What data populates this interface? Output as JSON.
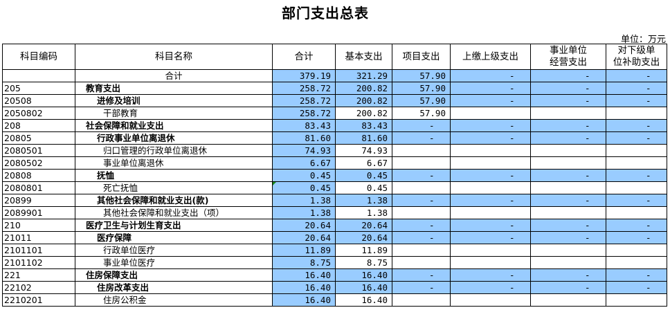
{
  "title": "部门支出总表",
  "unit": "单位：万元",
  "colors": {
    "highlight": "#99ccff",
    "marker": "#1a8a1a"
  },
  "headers": [
    "科目编码",
    "科目名称",
    "合计",
    "基本支出",
    "项目支出",
    "上缴上级支出",
    "事业单位\n经营支出",
    "对下级单\n位补助支出"
  ],
  "rows": [
    {
      "code": "",
      "name": "合计",
      "level": 0,
      "values": [
        "379.19",
        "321.29",
        "57.90",
        "-",
        "-",
        "-"
      ]
    },
    {
      "code": "205",
      "name": "教育支出",
      "level": 1,
      "values": [
        "258.72",
        "200.82",
        "57.90",
        "-",
        "-",
        "-"
      ]
    },
    {
      "code": "20508",
      "name": "进修及培训",
      "level": 2,
      "values": [
        "258.72",
        "200.82",
        "57.90",
        "-",
        "-",
        "-"
      ]
    },
    {
      "code": "2050802",
      "name": "干部教育",
      "level": 3,
      "values": [
        "258.72",
        "200.82",
        "57.90",
        "",
        "",
        ""
      ]
    },
    {
      "code": "208",
      "name": "社会保障和就业支出",
      "level": 1,
      "values": [
        "83.43",
        "83.43",
        "-",
        "-",
        "-",
        "-"
      ]
    },
    {
      "code": "20805",
      "name": "行政事业单位离退休",
      "level": 2,
      "values": [
        "81.60",
        "81.60",
        "-",
        "-",
        "-",
        "-"
      ]
    },
    {
      "code": "2080501",
      "name": "归口管理的行政单位离退休",
      "level": 3,
      "values": [
        "74.93",
        "74.93",
        "",
        "",
        "",
        ""
      ]
    },
    {
      "code": "2080502",
      "name": "事业单位离退休",
      "level": 3,
      "values": [
        "6.67",
        "6.67",
        "",
        "",
        "",
        ""
      ]
    },
    {
      "code": "20808",
      "name": "抚恤",
      "level": 2,
      "values": [
        "0.45",
        "0.45",
        "-",
        "-",
        "-",
        "-"
      ]
    },
    {
      "code": "2080801",
      "name": "死亡抚恤",
      "level": 3,
      "values": [
        "0.45",
        "0.45",
        "",
        "",
        "",
        ""
      ],
      "marker": true
    },
    {
      "code": "20899",
      "name": "其他社会保障和就业支出(款)",
      "level": 2,
      "values": [
        "1.38",
        "1.38",
        "-",
        "-",
        "-",
        "-"
      ]
    },
    {
      "code": "2089901",
      "name": "其他社会保障和就业支出（项）",
      "level": 3,
      "values": [
        "1.38",
        "1.38",
        "",
        "",
        "",
        ""
      ]
    },
    {
      "code": "210",
      "name": "医疗卫生与计划生育支出",
      "level": 1,
      "values": [
        "20.64",
        "20.64",
        "-",
        "-",
        "-",
        "-"
      ]
    },
    {
      "code": "21011",
      "name": "医疗保障",
      "level": 2,
      "values": [
        "20.64",
        "20.64",
        "-",
        "-",
        "-",
        "-"
      ]
    },
    {
      "code": "2101101",
      "name": "行政单位医疗",
      "level": 3,
      "values": [
        "11.89",
        "11.89",
        "",
        "",
        "",
        ""
      ]
    },
    {
      "code": "2101102",
      "name": "事业单位医疗",
      "level": 3,
      "values": [
        "8.75",
        "8.75",
        "",
        "",
        "",
        ""
      ]
    },
    {
      "code": "221",
      "name": "住房保障支出",
      "level": 1,
      "values": [
        "16.40",
        "16.40",
        "-",
        "-",
        "-",
        "-"
      ]
    },
    {
      "code": "22102",
      "name": "住房改革支出",
      "level": 2,
      "values": [
        "16.40",
        "16.40",
        "-",
        "-",
        "-",
        "-"
      ]
    },
    {
      "code": "2210201",
      "name": "住房公积金",
      "level": 3,
      "values": [
        "16.40",
        "16.40",
        "",
        "",
        "",
        ""
      ]
    }
  ]
}
